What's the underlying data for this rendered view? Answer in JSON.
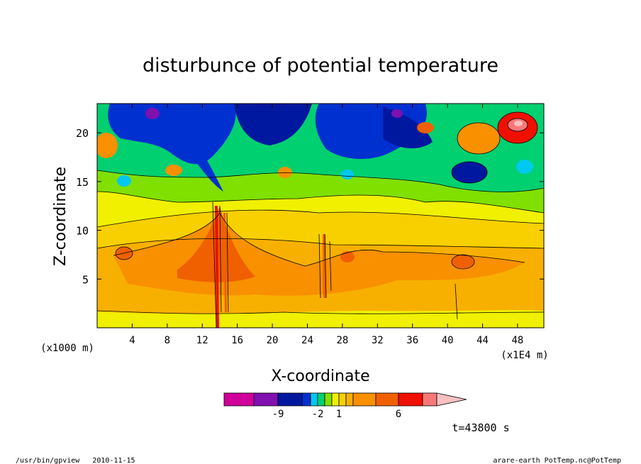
{
  "chart_data": {
    "type": "heatmap",
    "title": "disturbunce of potential temperature",
    "xlabel": "X-coordinate",
    "ylabel": "Z-coordinate",
    "x_unit_left": "(x1000 m)",
    "x_unit_right": "(x1E4 m)",
    "xlim": [
      0,
      51
    ],
    "ylim": [
      0,
      23
    ],
    "x_ticks": [
      4,
      8,
      12,
      16,
      20,
      24,
      28,
      32,
      36,
      40,
      44,
      48
    ],
    "y_ticks": [
      5,
      10,
      15,
      20
    ],
    "colorbar": {
      "labels": [
        {
          "text": "-9",
          "level": 1
        },
        {
          "text": "-2",
          "level": 4
        },
        {
          "text": "1",
          "level": 7
        },
        {
          "text": "6",
          "level": 11
        }
      ],
      "colors": [
        "#d0009a",
        "#8010b0",
        "#0018a0",
        "#0030d0",
        "#00c8f0",
        "#00d070",
        "#80e000",
        "#f0f000",
        "#f8d000",
        "#f8b000",
        "#f89000",
        "#f06000",
        "#f01000",
        "#f87878",
        "#f8c0c0"
      ]
    },
    "time_label": "t=43800 s",
    "footer_left": "/usr/bin/gpview   2010-11-15",
    "footer_right": "arare-earth_PotTemp.nc@PotTemp",
    "field": [
      {
        "x": 2,
        "z": 20,
        "value": 6
      },
      {
        "x": 8,
        "z": 19,
        "value": -6
      },
      {
        "x": 16,
        "z": 20,
        "value": -8
      },
      {
        "x": 25,
        "z": 19,
        "value": -6
      },
      {
        "x": 32,
        "z": 20,
        "value": -7
      },
      {
        "x": 38,
        "z": 19,
        "value": 6
      },
      {
        "x": 43,
        "z": 16,
        "value": -7
      },
      {
        "x": 48,
        "z": 21,
        "value": 12
      },
      {
        "x": 20,
        "z": 16,
        "value": 4
      },
      {
        "x": 9,
        "z": 7,
        "value": 6
      },
      {
        "x": 15,
        "z": 7,
        "value": 7
      },
      {
        "x": 28,
        "z": 7,
        "value": 5
      },
      {
        "x": 41,
        "z": 7,
        "value": 6
      },
      {
        "x": 25,
        "z": 11,
        "value": 2
      }
    ]
  }
}
